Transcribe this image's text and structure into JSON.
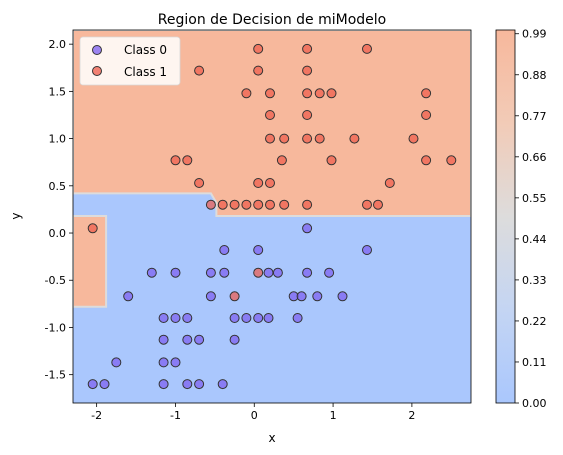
{
  "chart_data": {
    "type": "scatter",
    "title": "Region de Decision de miModelo",
    "xlabel": "x",
    "ylabel": "y",
    "xlim": [
      -2.3,
      2.75
    ],
    "ylim": [
      -1.8,
      2.15
    ],
    "xticks": [
      "-2",
      "-1",
      "0",
      "1",
      "2"
    ],
    "xtick_values": [
      -2,
      -1,
      0,
      1,
      2
    ],
    "yticks": [
      "-1.5",
      "-1.0",
      "-0.5",
      "0.0",
      "0.5",
      "1.0",
      "1.5",
      "2.0"
    ],
    "ytick_values": [
      -1.5,
      -1.0,
      -0.5,
      0.0,
      0.5,
      1.0,
      1.5,
      2.0
    ],
    "grid": false,
    "legend_position": "top-left",
    "colorbar": {
      "ticks": [
        "0.00",
        "0.11",
        "0.22",
        "0.33",
        "0.44",
        "0.55",
        "0.66",
        "0.77",
        "0.88",
        "0.99"
      ],
      "tick_values": [
        0.0,
        0.11,
        0.22,
        0.33,
        0.44,
        0.55,
        0.66,
        0.77,
        0.88,
        0.99
      ],
      "range": [
        0,
        1
      ],
      "colormap": "coolwarm"
    },
    "decision_regions": {
      "class0_color": "#aac7fd",
      "class1_color": "#f7b89c",
      "boundary_color": "#dddcdc",
      "class1_polygons": [
        [
          [
            -2.3,
            2.15
          ],
          [
            2.75,
            2.15
          ],
          [
            2.75,
            0.18
          ],
          [
            -0.48,
            0.18
          ],
          [
            -0.48,
            0.32
          ],
          [
            -0.55,
            0.42
          ],
          [
            -2.3,
            0.42
          ]
        ],
        [
          [
            -2.3,
            0.18
          ],
          [
            -1.88,
            0.18
          ],
          [
            -1.88,
            -0.78
          ],
          [
            -2.3,
            -0.78
          ]
        ]
      ]
    },
    "series": [
      {
        "name": "Class 0",
        "color": "#7b5cf0",
        "points": [
          [
            0.67,
            0.05
          ],
          [
            -0.38,
            -0.18
          ],
          [
            0.05,
            -0.18
          ],
          [
            1.43,
            -0.18
          ],
          [
            -1.3,
            -0.42
          ],
          [
            -1.0,
            -0.42
          ],
          [
            -0.55,
            -0.42
          ],
          [
            -0.38,
            -0.42
          ],
          [
            0.18,
            -0.42
          ],
          [
            0.3,
            -0.42
          ],
          [
            0.67,
            -0.42
          ],
          [
            0.95,
            -0.42
          ],
          [
            -1.6,
            -0.67
          ],
          [
            -0.55,
            -0.67
          ],
          [
            0.5,
            -0.67
          ],
          [
            0.6,
            -0.67
          ],
          [
            0.8,
            -0.67
          ],
          [
            1.12,
            -0.67
          ],
          [
            -1.15,
            -0.9
          ],
          [
            -1.0,
            -0.9
          ],
          [
            -0.85,
            -0.9
          ],
          [
            -0.25,
            -0.9
          ],
          [
            -0.1,
            -0.9
          ],
          [
            0.05,
            -0.9
          ],
          [
            0.18,
            -0.9
          ],
          [
            0.55,
            -0.9
          ],
          [
            -1.15,
            -1.13
          ],
          [
            -0.85,
            -1.13
          ],
          [
            -0.7,
            -1.13
          ],
          [
            -0.25,
            -1.13
          ],
          [
            -1.75,
            -1.37
          ],
          [
            -1.15,
            -1.37
          ],
          [
            -1.0,
            -1.37
          ],
          [
            -2.05,
            -1.6
          ],
          [
            -1.9,
            -1.6
          ],
          [
            -1.15,
            -1.6
          ],
          [
            -0.85,
            -1.6
          ],
          [
            -0.7,
            -1.6
          ],
          [
            -0.4,
            -1.6
          ]
        ]
      },
      {
        "name": "Class 1",
        "color": "#ee5a4a",
        "points": [
          [
            0.05,
            1.95
          ],
          [
            0.67,
            1.95
          ],
          [
            1.43,
            1.95
          ],
          [
            -0.7,
            1.72
          ],
          [
            0.05,
            1.72
          ],
          [
            0.67,
            1.72
          ],
          [
            -0.1,
            1.48
          ],
          [
            0.2,
            1.48
          ],
          [
            0.67,
            1.48
          ],
          [
            0.83,
            1.48
          ],
          [
            0.98,
            1.48
          ],
          [
            2.18,
            1.48
          ],
          [
            0.2,
            1.25
          ],
          [
            0.67,
            1.25
          ],
          [
            2.18,
            1.25
          ],
          [
            0.2,
            1.0
          ],
          [
            0.38,
            1.0
          ],
          [
            0.67,
            1.0
          ],
          [
            0.83,
            1.0
          ],
          [
            1.27,
            1.0
          ],
          [
            2.02,
            1.0
          ],
          [
            -1.0,
            0.77
          ],
          [
            -0.85,
            0.77
          ],
          [
            0.35,
            0.77
          ],
          [
            0.98,
            0.77
          ],
          [
            2.18,
            0.77
          ],
          [
            2.5,
            0.77
          ],
          [
            -0.7,
            0.53
          ],
          [
            0.05,
            0.53
          ],
          [
            0.2,
            0.53
          ],
          [
            1.72,
            0.53
          ],
          [
            -0.55,
            0.3
          ],
          [
            -0.4,
            0.3
          ],
          [
            -0.25,
            0.3
          ],
          [
            -0.1,
            0.3
          ],
          [
            0.05,
            0.3
          ],
          [
            0.2,
            0.3
          ],
          [
            0.38,
            0.3
          ],
          [
            0.67,
            0.3
          ],
          [
            1.43,
            0.3
          ],
          [
            1.57,
            0.3
          ],
          [
            -2.05,
            0.05
          ],
          [
            0.05,
            -0.42
          ],
          [
            -0.25,
            -0.67
          ]
        ]
      }
    ]
  }
}
